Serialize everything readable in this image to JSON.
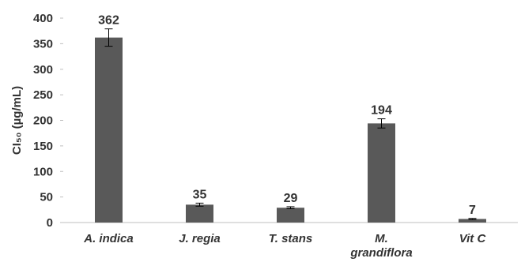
{
  "chart_data": {
    "type": "bar",
    "categories": [
      [
        "A. indica"
      ],
      [
        "J. regia"
      ],
      [
        "T. stans"
      ],
      [
        "M.",
        "grandiflora"
      ],
      [
        "Vit C"
      ]
    ],
    "values": [
      362,
      35,
      29,
      194,
      7
    ],
    "error": [
      17,
      3,
      2,
      9,
      1
    ],
    "data_labels": [
      "362",
      "35",
      "29",
      "194",
      "7"
    ],
    "ylabel": "CI₅₀ (µg/mL)",
    "ylim": [
      0,
      400
    ],
    "yticks": [
      0,
      50,
      100,
      150,
      200,
      250,
      300,
      350,
      400
    ],
    "grid": false,
    "legend": "none",
    "colors": {
      "bar": "#595959",
      "axis": "#bfbfbf",
      "text": "#333333"
    }
  }
}
